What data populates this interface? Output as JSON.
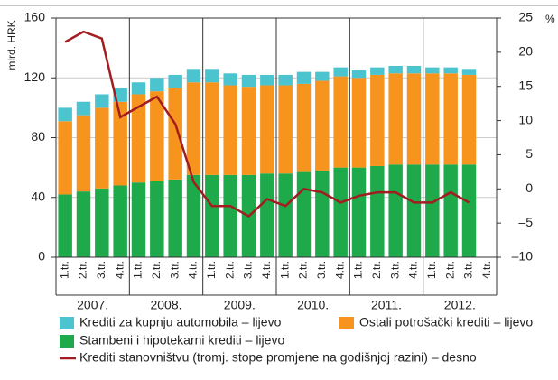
{
  "chart_data": {
    "type": "bar",
    "y_label": "mlrd. HRK",
    "y2_unit": "%",
    "categories": [
      "1.tr.",
      "2.tr.",
      "3.tr.",
      "4.tr.",
      "1.tr.",
      "2.tr.",
      "3.tr.",
      "4.tr.",
      "1.tr.",
      "2.tr.",
      "3.tr.",
      "4.tr.",
      "1.tr.",
      "2.tr.",
      "3.tr.",
      "4.tr.",
      "1.tr.",
      "2.tr.",
      "3.tr.",
      "4.tr.",
      "1.tr.",
      "2.tr.",
      "3.tr.",
      "4.tr."
    ],
    "years": [
      "2007.",
      "2008.",
      "2009.",
      "2010.",
      "2011.",
      "2012."
    ],
    "series": [
      {
        "name": "Stambeni i hipotekarni krediti – lijevo",
        "color": "#1ea94b",
        "type": "bar",
        "values": [
          42,
          44,
          46,
          48,
          50,
          51,
          52,
          55,
          55,
          55,
          55,
          56,
          56,
          57,
          58,
          60,
          60,
          61,
          62,
          62,
          62,
          62,
          62,
          null
        ]
      },
      {
        "name": "Ostali potrošački krediti – lijevo",
        "color": "#f7941d",
        "type": "bar",
        "values": [
          49,
          51,
          54,
          56,
          59,
          60,
          61,
          62,
          62,
          60,
          59,
          59,
          59,
          59,
          60,
          61,
          60,
          61,
          61,
          61,
          61,
          61,
          60,
          null
        ]
      },
      {
        "name": "Krediti za kupnju automobila – lijevo",
        "color": "#4cc4cf",
        "type": "bar",
        "values": [
          9,
          9,
          9,
          9,
          8,
          9,
          9,
          9,
          9,
          8,
          8,
          7,
          7,
          8,
          6,
          6,
          5,
          5,
          5,
          5,
          4,
          4,
          4,
          null
        ]
      },
      {
        "name": "Krediti stanovništvu (tromj. stope promjene na godišnjoj razini) – desno",
        "color": "#a11d21",
        "type": "line",
        "axis": "y2",
        "values": [
          21.5,
          23,
          22,
          10.5,
          12,
          13.5,
          9.5,
          1,
          -2.5,
          -2.5,
          -4,
          -1.5,
          -2.5,
          0,
          -0.5,
          -2,
          -1,
          -0.5,
          -0.5,
          -2,
          -2,
          -0.5,
          -2,
          null
        ]
      }
    ],
    "ylim": [
      0,
      160
    ],
    "yticks": [
      0,
      40,
      80,
      120,
      160
    ],
    "y2lim": [
      -10,
      25
    ],
    "y2ticks": [
      {
        "value": -10,
        "label": "–10"
      },
      {
        "value": -5,
        "label": "–5"
      },
      0,
      5,
      10,
      15,
      20,
      25
    ],
    "grid": true
  }
}
